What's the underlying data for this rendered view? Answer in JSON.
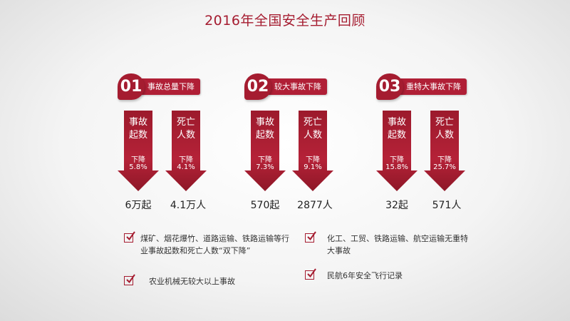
{
  "title": "2016年全国安全生产回顾",
  "sections": [
    {
      "number": "01",
      "label": "事故总量下降",
      "arrows": [
        {
          "line1": "事故",
          "line2": "起数",
          "down": "下降",
          "pct": "5.8%",
          "value": "6万起"
        },
        {
          "line1": "死亡",
          "line2": "人数",
          "down": "下降",
          "pct": "4.1%",
          "value": "4.1万人"
        }
      ]
    },
    {
      "number": "02",
      "label": "较大事故下降",
      "arrows": [
        {
          "line1": "事故",
          "line2": "起数",
          "down": "下降",
          "pct": "7.3%",
          "value": "570起"
        },
        {
          "line1": "死亡",
          "line2": "人数",
          "down": "下降",
          "pct": "9.1%",
          "value": "2877人"
        }
      ]
    },
    {
      "number": "03",
      "label": "重特大事故下降",
      "arrows": [
        {
          "line1": "事故",
          "line2": "起数",
          "down": "下降",
          "pct": "15.8%",
          "value": "32起"
        },
        {
          "line1": "死亡",
          "line2": "人数",
          "down": "下降",
          "pct": "25.7%",
          "value": "571人"
        }
      ]
    }
  ],
  "checklist": [
    {
      "text": "煤矿、烟花爆竹、道路运输、铁路运输等行业事故起数和死亡人数“双下降”"
    },
    {
      "text": "农业机械无较大以上事故"
    },
    {
      "text": "化工、工贸、铁路运输、航空运输无重特大事故"
    },
    {
      "text": "民航6年安全飞行记录"
    }
  ],
  "colors": {
    "accent": "#a51c30",
    "arrow": "#b52238"
  },
  "icons": {
    "check": "checkbox-check-icon"
  }
}
